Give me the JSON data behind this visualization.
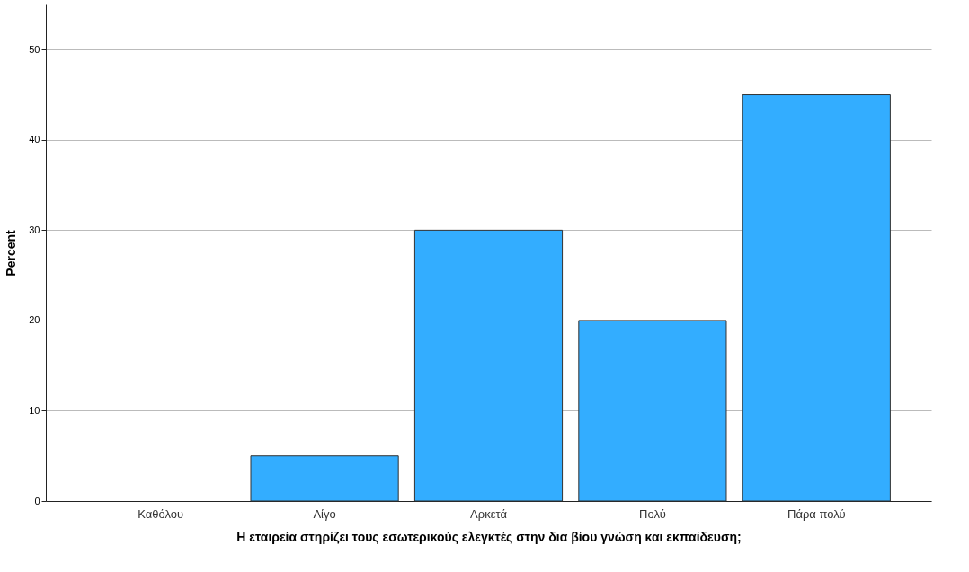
{
  "chart_data": {
    "type": "bar",
    "xlabel": "Η εταιρεία στηρίζει τους εσωτερικούς ελεγκτές στην δια βίου γνώση και εκπαίδευση;",
    "ylabel": "Percent",
    "categories": [
      "Καθόλου",
      "Λίγο",
      "Αρκετά",
      "Πολύ",
      "Πάρα πολύ"
    ],
    "values": [
      0,
      5,
      30,
      20,
      45
    ],
    "color": "#33adff",
    "ylim": [
      0,
      55
    ],
    "yticks": [
      0,
      10,
      20,
      30,
      40,
      50
    ],
    "grid": "y"
  }
}
